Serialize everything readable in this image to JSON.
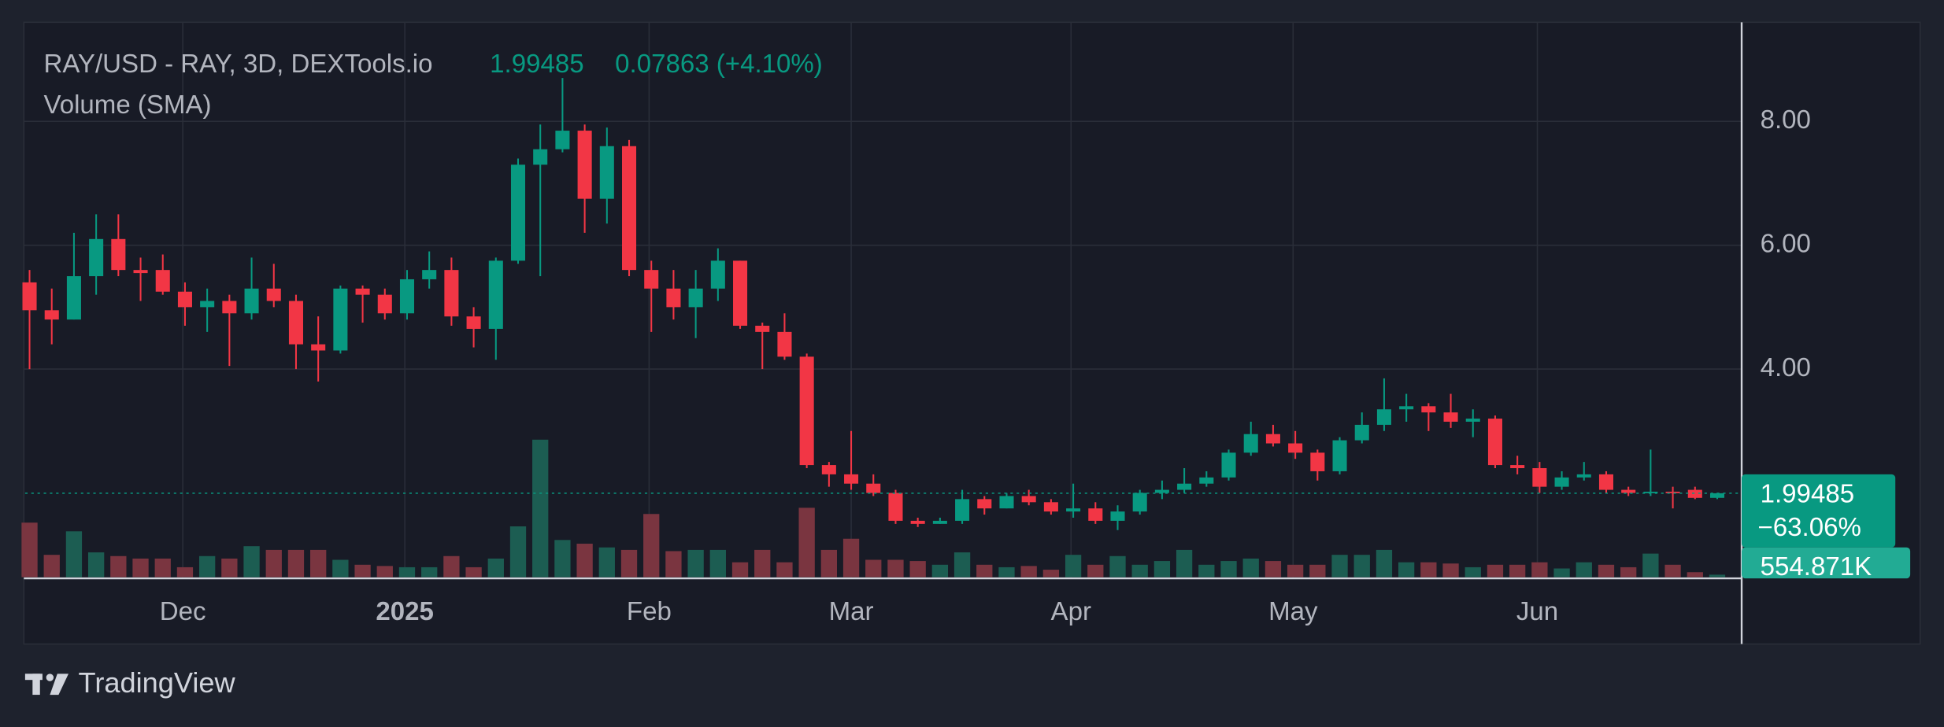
{
  "header": {
    "symbol": "RAY/USD - RAY, 3D, DEXTools.io",
    "change": "0.07863 (+4.10%)",
    "indicator": "Volume (SMA)",
    "period_change": "−63.06%",
    "volume_last_label": "554.871K"
  },
  "chart_data": {
    "type": "candlestick",
    "open": [
      5.4,
      4.95,
      4.8,
      5.5,
      6.1,
      5.6,
      5.6,
      5.25,
      5.0,
      5.1,
      4.9,
      5.3,
      5.1,
      4.4,
      4.3,
      5.3,
      5.2,
      4.9,
      5.45,
      5.6,
      4.85,
      4.65,
      5.75,
      7.3,
      7.55,
      7.85,
      6.75,
      7.6,
      5.6,
      5.3,
      5.0,
      5.3,
      5.75,
      4.7,
      4.6,
      4.2,
      2.45,
      2.3,
      2.15,
      2.0,
      1.55,
      1.5,
      1.55,
      1.9,
      1.75,
      1.95,
      1.85,
      1.7,
      1.75,
      1.55,
      1.7,
      2.0,
      2.05,
      2.15,
      2.25,
      2.65,
      2.95,
      2.8,
      2.65,
      2.35,
      2.85,
      3.1,
      3.35,
      3.4,
      3.3,
      3.15,
      3.2,
      2.45,
      2.4,
      2.1,
      2.25,
      2.3,
      2.05,
      2.0,
      2.02,
      2.05,
      1.92
    ],
    "high": [
      5.6,
      5.3,
      6.2,
      6.5,
      6.5,
      5.8,
      5.85,
      5.4,
      5.3,
      5.2,
      5.8,
      5.7,
      5.2,
      4.85,
      5.35,
      5.35,
      5.3,
      5.6,
      5.9,
      5.8,
      5.0,
      5.8,
      7.4,
      7.95,
      8.7,
      7.95,
      7.9,
      7.7,
      5.75,
      5.6,
      5.6,
      5.95,
      5.75,
      4.75,
      4.9,
      4.25,
      2.5,
      3.0,
      2.3,
      2.05,
      1.6,
      1.6,
      2.05,
      1.95,
      2.0,
      2.05,
      1.9,
      2.15,
      1.85,
      1.8,
      2.05,
      2.2,
      2.4,
      2.35,
      2.7,
      3.15,
      3.1,
      3.0,
      2.7,
      2.9,
      3.3,
      3.85,
      3.6,
      3.45,
      3.6,
      3.35,
      3.25,
      2.6,
      2.5,
      2.35,
      2.5,
      2.35,
      2.1,
      2.7,
      2.1,
      2.1,
      2.0
    ],
    "low": [
      4.0,
      4.4,
      4.8,
      5.2,
      5.5,
      5.1,
      5.2,
      4.7,
      4.6,
      4.05,
      4.8,
      5.0,
      4.0,
      3.8,
      4.25,
      4.75,
      4.8,
      4.8,
      5.3,
      4.7,
      4.35,
      4.15,
      5.7,
      5.5,
      7.5,
      6.2,
      6.35,
      5.5,
      4.6,
      4.8,
      4.5,
      5.1,
      4.65,
      4.0,
      4.15,
      2.4,
      2.1,
      2.05,
      1.95,
      1.5,
      1.45,
      1.5,
      1.5,
      1.65,
      1.75,
      1.8,
      1.65,
      1.6,
      1.5,
      1.4,
      1.65,
      1.9,
      2.0,
      2.1,
      2.2,
      2.6,
      2.75,
      2.55,
      2.2,
      2.3,
      2.8,
      3.0,
      3.15,
      3.0,
      3.05,
      2.9,
      2.4,
      2.3,
      2.0,
      2.05,
      2.2,
      2.0,
      1.95,
      1.95,
      1.75,
      1.9,
      1.9
    ],
    "close": [
      4.95,
      4.8,
      5.5,
      6.1,
      5.6,
      5.55,
      5.25,
      5.0,
      5.1,
      4.9,
      5.3,
      5.1,
      4.4,
      4.3,
      5.3,
      5.2,
      4.9,
      5.45,
      5.6,
      4.85,
      4.65,
      5.75,
      7.3,
      7.55,
      7.85,
      6.75,
      7.6,
      5.6,
      5.3,
      5.0,
      5.3,
      5.75,
      4.7,
      4.6,
      4.2,
      2.45,
      2.3,
      2.15,
      2.0,
      1.55,
      1.5,
      1.55,
      1.9,
      1.75,
      1.95,
      1.85,
      1.7,
      1.75,
      1.55,
      1.7,
      2.0,
      2.05,
      2.15,
      2.25,
      2.65,
      2.95,
      2.8,
      2.65,
      2.35,
      2.85,
      3.1,
      3.35,
      3.4,
      3.3,
      3.15,
      3.2,
      2.45,
      2.4,
      2.1,
      2.25,
      2.3,
      2.05,
      2.0,
      2.02,
      2.0,
      1.92,
      1.99485
    ],
    "volume": [
      12320000,
      5040000,
      10360000,
      5600000,
      4760000,
      4200000,
      4200000,
      2240000,
      4760000,
      4200000,
      7000000,
      6160000,
      6160000,
      6160000,
      3920000,
      2800000,
      2520000,
      2240000,
      2240000,
      4760000,
      2240000,
      4200000,
      11480000,
      31080000,
      8400000,
      7560000,
      6720000,
      6160000,
      14280000,
      5880000,
      6160000,
      6160000,
      3360000,
      6160000,
      3360000,
      15680000,
      6160000,
      8680000,
      3920000,
      3920000,
      3640000,
      2800000,
      5600000,
      2800000,
      2240000,
      2520000,
      1680000,
      5040000,
      2800000,
      4760000,
      2800000,
      3640000,
      6160000,
      2800000,
      3640000,
      4200000,
      3640000,
      2800000,
      2800000,
      5040000,
      5040000,
      6160000,
      3360000,
      3360000,
      3080000,
      2240000,
      2800000,
      2800000,
      3360000,
      1960000,
      3360000,
      2800000,
      2240000,
      5320000,
      2800000,
      1120000,
      554871
    ],
    "xlim": [
      -0.2,
      77.1
    ],
    "xticks": [
      {
        "value": 6.9,
        "label": "Dec"
      },
      {
        "value": 16.9,
        "label": "2025"
      },
      {
        "value": 27.9,
        "label": "Feb"
      },
      {
        "value": 37.0,
        "label": "Mar"
      },
      {
        "value": 46.9,
        "label": "Apr"
      },
      {
        "value": 56.9,
        "label": "May"
      },
      {
        "value": 67.9,
        "label": "Jun"
      }
    ],
    "ylim": [
      0.6,
      9.6
    ],
    "yticks": [
      {
        "value": 4,
        "label": "4.00"
      },
      {
        "value": 6,
        "label": "6.00"
      },
      {
        "value": 8,
        "label": "8.00"
      }
    ],
    "grid": true,
    "up_color": "#089981",
    "down_color": "#f23645",
    "up_volume_color": "#1c5d52",
    "down_volume_color": "#7a3540"
  },
  "brand": "TradingView"
}
